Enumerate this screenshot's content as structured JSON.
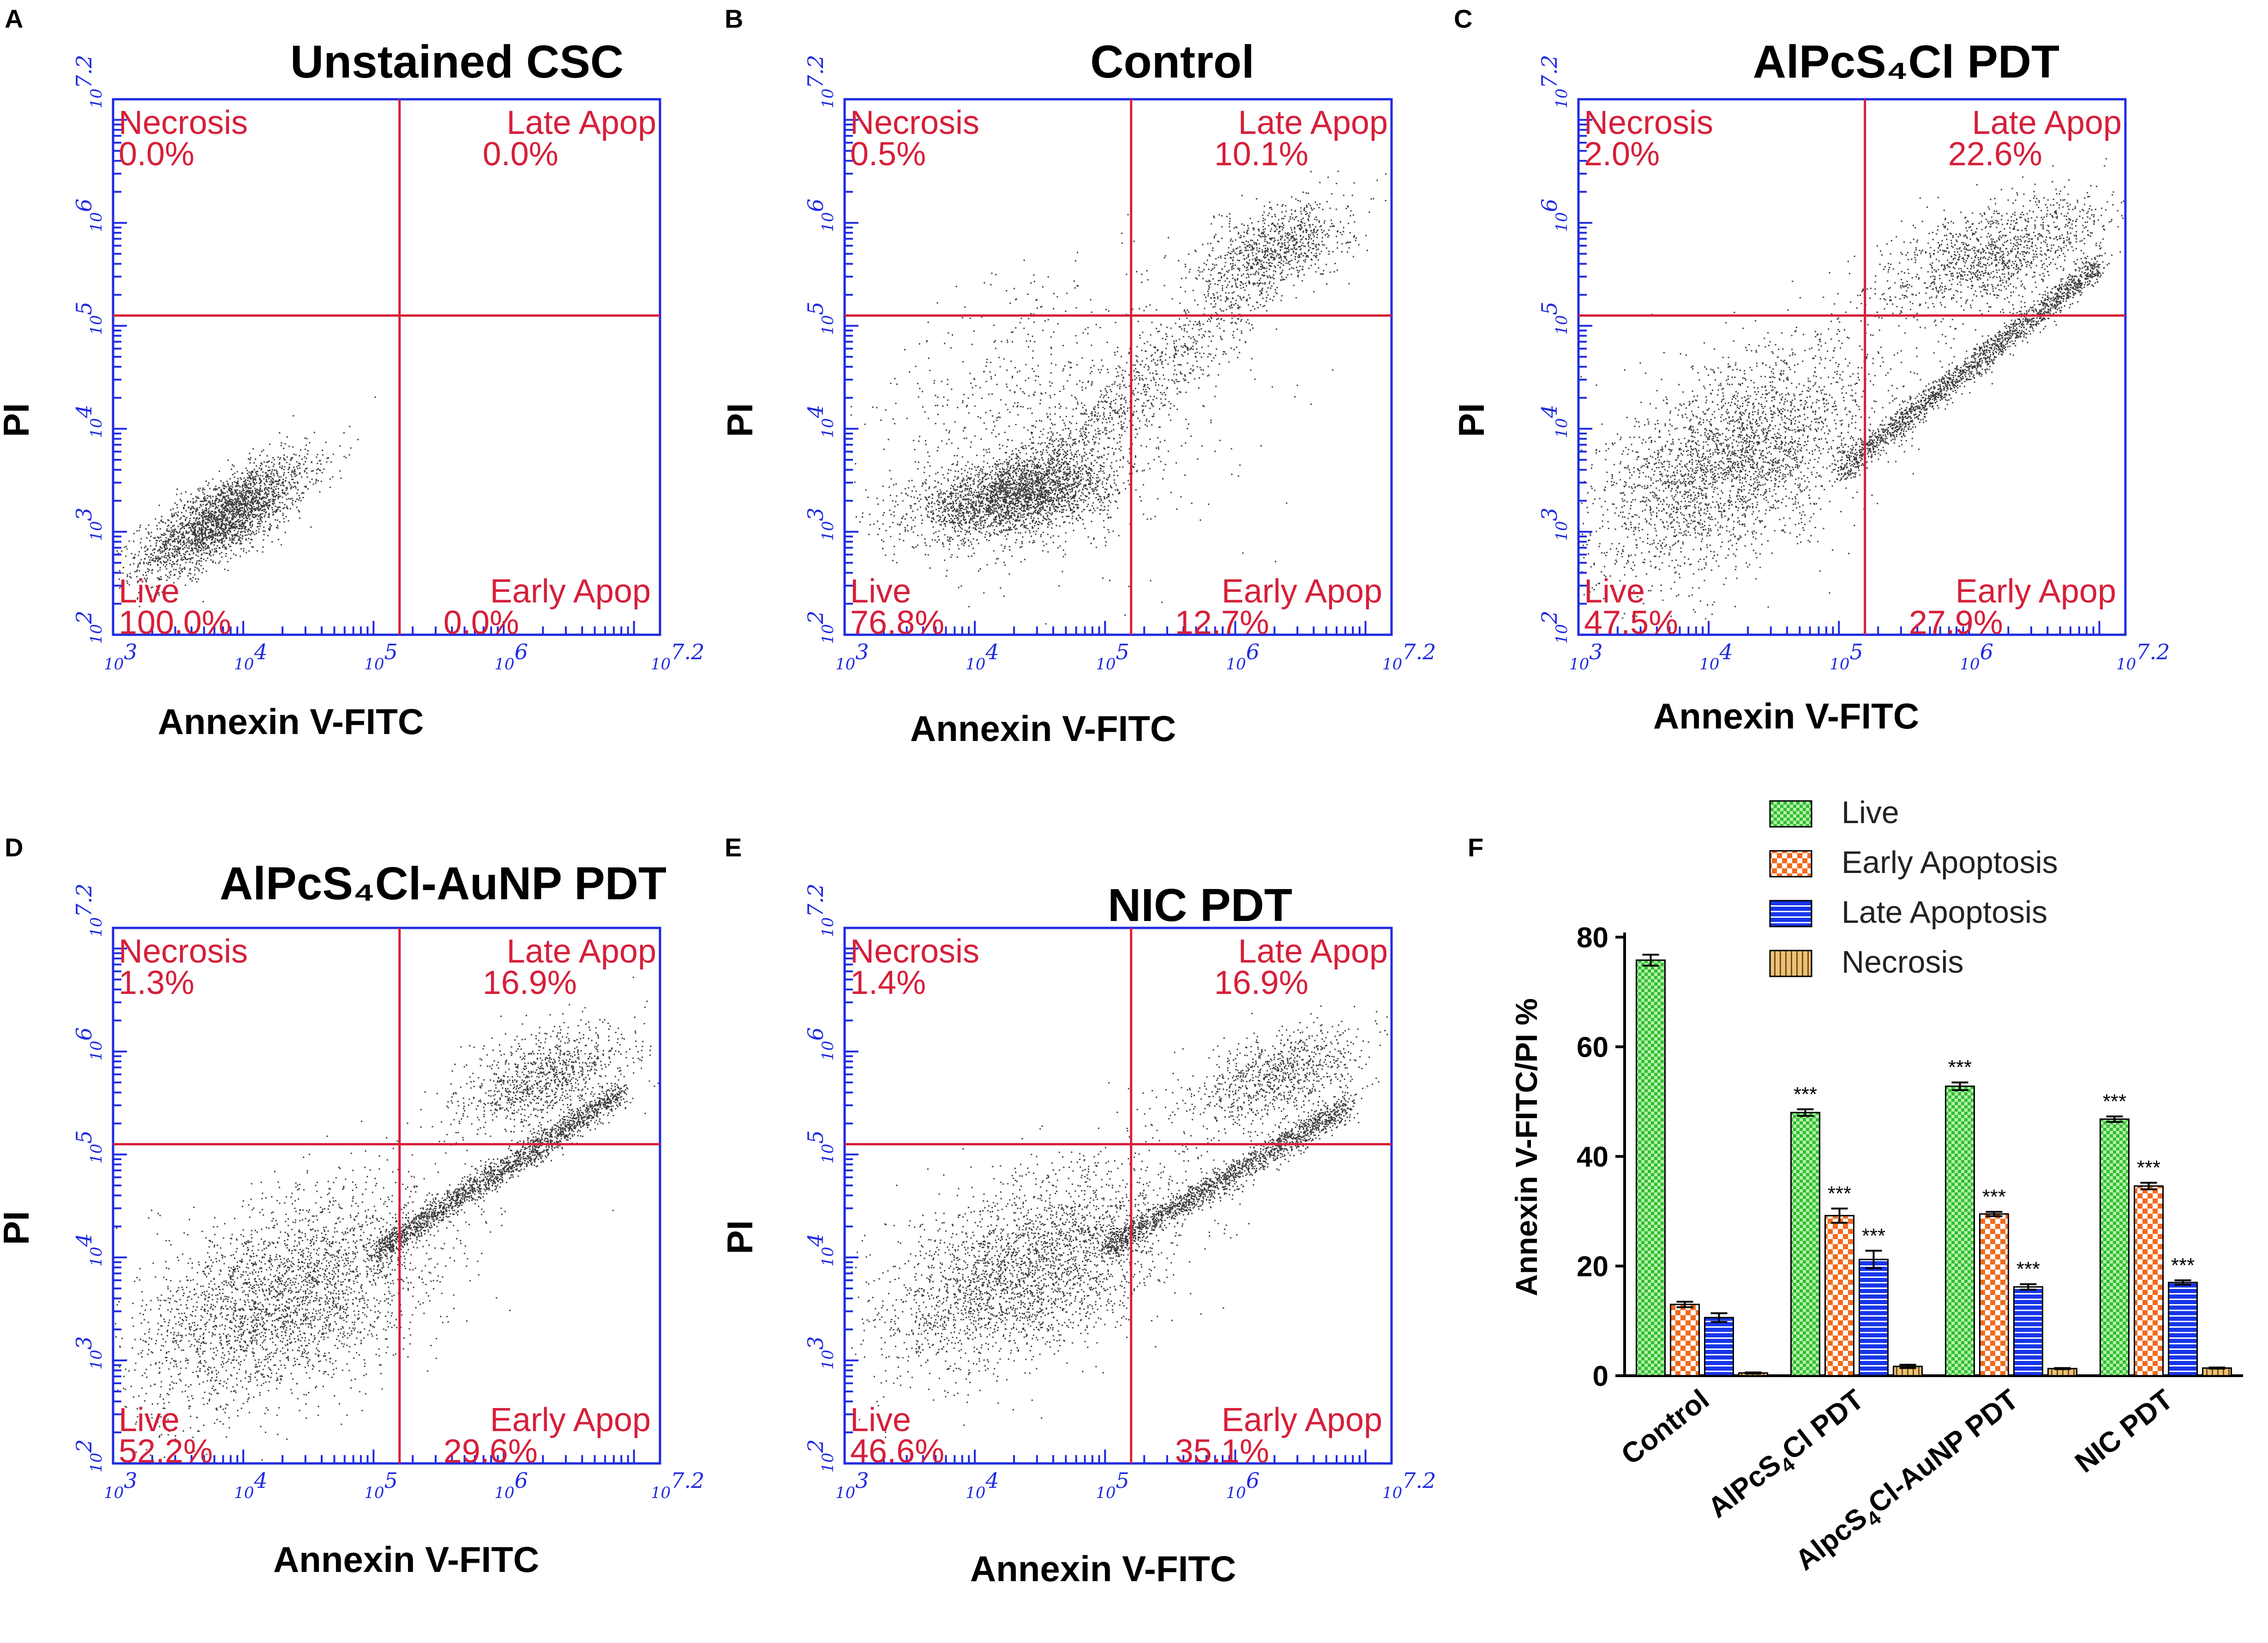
{
  "colors": {
    "axis": "#1f2be0",
    "quadrant": "#d61f3a",
    "dots": "#1a1a1a",
    "live": "#2fbf2f",
    "early": "#f26a1b",
    "late": "#1736e8",
    "necrosis": "#c8962a"
  },
  "chart_data": [
    {
      "type": "scatter",
      "panel": "A",
      "title": "Unstained CSC",
      "xlabel": "Annexin V-FITC",
      "ylabel": "PI",
      "scale": "log",
      "xlim": [
        3,
        7.2
      ],
      "ylim": [
        2,
        7.2
      ],
      "x_ticks": [
        "10^3",
        "10^4",
        "10^5",
        "10^6",
        "10^7.2"
      ],
      "y_ticks": [
        "10^2",
        "10^3",
        "10^4",
        "10^5",
        "10^6",
        "10^7.2"
      ],
      "gate": {
        "x": 5.2,
        "y": 5.1
      },
      "quadrants": {
        "necrosis": {
          "label": "Necrosis",
          "value": "0.0%"
        },
        "late": {
          "label": "Late Apop",
          "value": "0.0%"
        },
        "live": {
          "label": "Live",
          "value": "100.0%"
        },
        "early": {
          "label": "Early Apop",
          "value": "0.0%"
        }
      },
      "populations": [
        {
          "kind": "blob",
          "cx": 3.85,
          "cy": 3.15,
          "sx": 0.32,
          "sy": 0.28,
          "rho": 0.75,
          "n": 2600
        }
      ]
    },
    {
      "type": "scatter",
      "panel": "B",
      "title": "Control",
      "xlabel": "Annexin V-FITC",
      "ylabel": "PI",
      "scale": "log",
      "xlim": [
        3,
        7.2
      ],
      "ylim": [
        2,
        7.2
      ],
      "x_ticks": [
        "10^3",
        "10^4",
        "10^5",
        "10^6",
        "10^7.2"
      ],
      "y_ticks": [
        "10^2",
        "10^3",
        "10^4",
        "10^5",
        "10^6",
        "10^7.2"
      ],
      "gate": {
        "x": 5.2,
        "y": 5.1
      },
      "quadrants": {
        "necrosis": {
          "label": "Necrosis",
          "value": "0.5%"
        },
        "late": {
          "label": "Late Apop",
          "value": "10.1%"
        },
        "live": {
          "label": "Live",
          "value": "76.8%"
        },
        "early": {
          "label": "Early Apop",
          "value": "12.7%"
        }
      },
      "populations": [
        {
          "kind": "blob",
          "cx": 4.3,
          "cy": 3.35,
          "sx": 0.38,
          "sy": 0.2,
          "rho": 0.4,
          "n": 2600
        },
        {
          "kind": "diag",
          "x0": 4.3,
          "y0": 3.35,
          "x1": 6.6,
          "y1": 5.9,
          "spread": 0.18,
          "n": 1100
        },
        {
          "kind": "blob",
          "cx": 6.3,
          "cy": 5.8,
          "sx": 0.3,
          "sy": 0.22,
          "rho": 0.5,
          "n": 700
        },
        {
          "kind": "blob",
          "cx": 4.6,
          "cy": 4.1,
          "sx": 0.7,
          "sy": 0.7,
          "rho": 0.2,
          "n": 900
        }
      ]
    },
    {
      "type": "scatter",
      "panel": "C",
      "title": "AlPcS₄Cl PDT",
      "xlabel": "Annexin V-FITC",
      "ylabel": "PI",
      "scale": "log",
      "xlim": [
        3,
        7.2
      ],
      "ylim": [
        2,
        7.2
      ],
      "x_ticks": [
        "10^3",
        "10^4",
        "10^5",
        "10^6",
        "10^7.2"
      ],
      "y_ticks": [
        "10^2",
        "10^3",
        "10^4",
        "10^5",
        "10^6",
        "10^7.2"
      ],
      "gate": {
        "x": 5.2,
        "y": 5.1
      },
      "quadrants": {
        "necrosis": {
          "label": "Necrosis",
          "value": "2.0%"
        },
        "late": {
          "label": "Late Apop",
          "value": "22.6%"
        },
        "live": {
          "label": "Live",
          "value": "47.5%"
        },
        "early": {
          "label": "Early Apop",
          "value": "27.9%"
        }
      },
      "populations": [
        {
          "kind": "blob",
          "cx": 4.2,
          "cy": 3.7,
          "sx": 0.55,
          "sy": 0.55,
          "rho": 0.55,
          "n": 3000
        },
        {
          "kind": "diag",
          "x0": 5.0,
          "y0": 3.6,
          "x1": 7.0,
          "y1": 5.6,
          "spread": 0.07,
          "n": 1800
        },
        {
          "kind": "blob",
          "cx": 6.2,
          "cy": 5.7,
          "sx": 0.45,
          "sy": 0.3,
          "rho": 0.6,
          "n": 1300
        }
      ]
    },
    {
      "type": "scatter",
      "panel": "D",
      "title": "AlPcS₄Cl-AuNP PDT",
      "xlabel": "Annexin V-FITC",
      "ylabel": "PI",
      "scale": "log",
      "xlim": [
        3,
        7.2
      ],
      "ylim": [
        2,
        7.2
      ],
      "x_ticks": [
        "10^3",
        "10^4",
        "10^5",
        "10^6",
        "10^7.2"
      ],
      "y_ticks": [
        "10^2",
        "10^3",
        "10^4",
        "10^5",
        "10^6",
        "10^7.2"
      ],
      "gate": {
        "x": 5.2,
        "y": 5.1
      },
      "quadrants": {
        "necrosis": {
          "label": "Necrosis",
          "value": "1.3%"
        },
        "late": {
          "label": "Late Apop",
          "value": "16.9%"
        },
        "live": {
          "label": "Live",
          "value": "52.2%"
        },
        "early": {
          "label": "Early Apop",
          "value": "29.6%"
        }
      },
      "populations": [
        {
          "kind": "blob",
          "cx": 4.3,
          "cy": 3.6,
          "sx": 0.6,
          "sy": 0.55,
          "rho": 0.5,
          "n": 3000
        },
        {
          "kind": "diag",
          "x0": 5.0,
          "y0": 4.05,
          "x1": 6.9,
          "y1": 5.6,
          "spread": 0.07,
          "n": 1900
        },
        {
          "kind": "blob",
          "cx": 6.3,
          "cy": 5.75,
          "sx": 0.35,
          "sy": 0.25,
          "rho": 0.5,
          "n": 1000
        }
      ]
    },
    {
      "type": "scatter",
      "panel": "E",
      "title": "NIC PDT",
      "xlabel": "Annexin V-FITC",
      "ylabel": "PI",
      "scale": "log",
      "xlim": [
        3,
        7.2
      ],
      "ylim": [
        2,
        7.2
      ],
      "x_ticks": [
        "10^3",
        "10^4",
        "10^5",
        "10^6",
        "10^7.2"
      ],
      "y_ticks": [
        "10^2",
        "10^3",
        "10^4",
        "10^5",
        "10^6",
        "10^7.2"
      ],
      "gate": {
        "x": 5.2,
        "y": 5.1
      },
      "quadrants": {
        "necrosis": {
          "label": "Necrosis",
          "value": "1.4%"
        },
        "late": {
          "label": "Late Apop",
          "value": "16.9%"
        },
        "live": {
          "label": "Live",
          "value": "46.6%"
        },
        "early": {
          "label": "Early Apop",
          "value": "35.1%"
        }
      },
      "populations": [
        {
          "kind": "blob",
          "cx": 4.4,
          "cy": 3.9,
          "sx": 0.55,
          "sy": 0.5,
          "rho": 0.5,
          "n": 2800
        },
        {
          "kind": "diag",
          "x0": 5.0,
          "y0": 4.1,
          "x1": 6.9,
          "y1": 5.5,
          "spread": 0.07,
          "n": 1700
        },
        {
          "kind": "blob",
          "cx": 6.3,
          "cy": 5.75,
          "sx": 0.35,
          "sy": 0.25,
          "rho": 0.5,
          "n": 900
        }
      ]
    },
    {
      "type": "bar",
      "panel": "F",
      "title": "",
      "xlabel": "",
      "ylabel": "Annexin V-FITC/PI %",
      "ylim": [
        0,
        80
      ],
      "yticks": [
        0,
        20,
        40,
        60,
        80
      ],
      "categories": [
        "Control",
        "AlPcS₄Cl PDT",
        "AlpcS₄Cl-AuNP PDT",
        "NIC PDT"
      ],
      "legend_position": "top",
      "series": [
        {
          "name": "Live",
          "key": "live",
          "values": [
            75.8,
            48.0,
            52.8,
            46.8
          ],
          "errors": [
            1.0,
            0.6,
            0.7,
            0.5
          ],
          "sig": [
            "",
            "***",
            "***",
            "***"
          ]
        },
        {
          "name": "Early Apoptosis",
          "key": "early",
          "values": [
            13.0,
            29.2,
            29.5,
            34.6
          ],
          "errors": [
            0.5,
            1.3,
            0.4,
            0.6
          ],
          "sig": [
            "",
            "***",
            "***",
            "***"
          ]
        },
        {
          "name": "Late Apoptosis",
          "key": "late",
          "values": [
            10.6,
            21.2,
            16.2,
            17.0
          ],
          "errors": [
            0.8,
            1.6,
            0.5,
            0.4
          ],
          "sig": [
            "",
            "***",
            "***",
            "***"
          ]
        },
        {
          "name": "Necrosis",
          "key": "necrosis",
          "values": [
            0.5,
            1.7,
            1.3,
            1.4
          ],
          "errors": [
            0.1,
            0.3,
            0.1,
            0.1
          ],
          "sig": [
            "",
            "",
            "",
            ""
          ]
        }
      ]
    }
  ]
}
